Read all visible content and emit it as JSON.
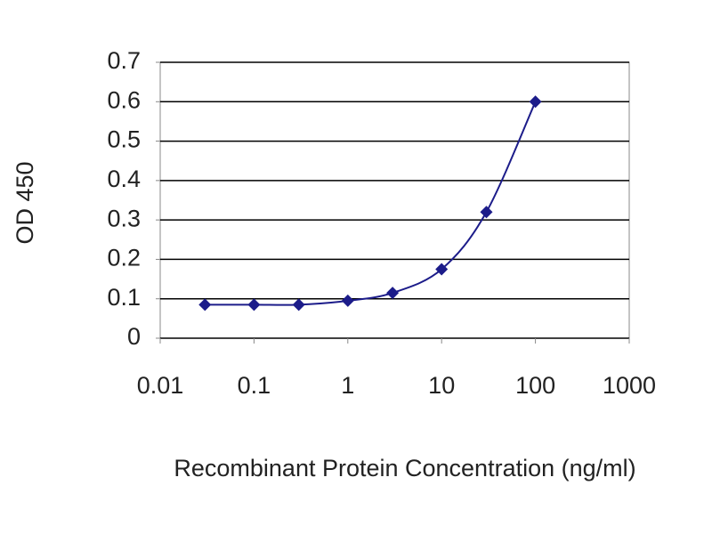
{
  "chart_data": {
    "type": "line",
    "x": [
      0.03,
      0.1,
      0.3,
      1,
      3,
      10,
      30,
      100
    ],
    "values": [
      0.085,
      0.085,
      0.085,
      0.095,
      0.115,
      0.175,
      0.32,
      0.6
    ],
    "color": "#1c1c8a",
    "xlabel": "Recombinant Protein Concentration (ng/ml)",
    "ylabel": "OD 450",
    "xscale": "log",
    "xlim": [
      0.01,
      1000
    ],
    "xticks": [
      0.01,
      0.1,
      1,
      10,
      100,
      1000
    ],
    "ylim": [
      0,
      0.7
    ],
    "yticks": [
      0,
      0.1,
      0.2,
      0.3,
      0.4,
      0.5,
      0.6,
      0.7
    ],
    "grid": true
  }
}
